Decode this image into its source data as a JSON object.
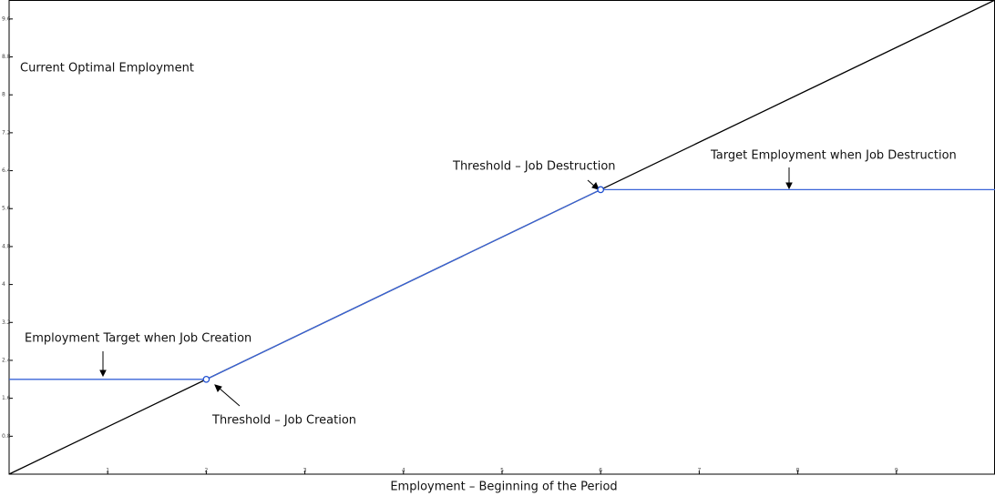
{
  "chart_data": {
    "type": "line",
    "x_label": "Employment – Beginning of the Period",
    "y_label": "Current Optimal Employment",
    "xlim": [
      0,
      10
    ],
    "ylim": [
      0,
      10
    ],
    "xticks": [
      1,
      2,
      3,
      4,
      5,
      6,
      7,
      8,
      9
    ],
    "yticks": [
      0.8,
      1.6,
      2.4,
      3.2,
      4,
      4.8,
      5.6,
      6.4,
      7.2,
      8,
      8.8,
      9.6
    ],
    "series": [
      {
        "x": [
          0,
          10
        ],
        "values": [
          0,
          10
        ],
        "color": "#000000"
      },
      {
        "x": [
          0,
          2,
          6,
          10
        ],
        "values": [
          2,
          2,
          6,
          6
        ],
        "color": "#3a64d8"
      },
      {
        "x": [
          2,
          6
        ],
        "values": [
          2,
          6
        ],
        "color": "#1f4fd0",
        "line": false,
        "marker": "open-circle"
      }
    ],
    "annotations": [
      "Threshold – Job Destruction",
      "Target Employment when Job Destruction",
      "Employment Target when Job Creation",
      "Threshold – Job Creation"
    ]
  }
}
